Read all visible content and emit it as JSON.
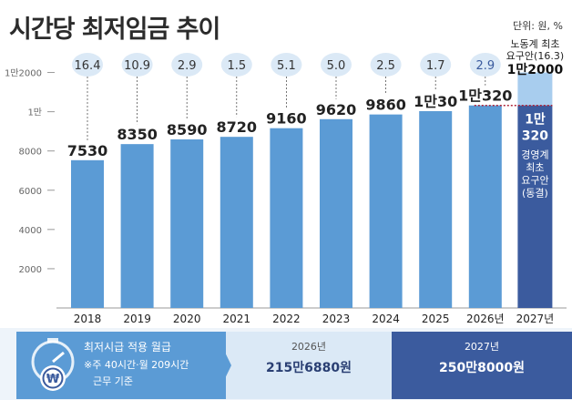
{
  "title": "시간당 최저임금 추이",
  "unit_note": "단위: 원, %",
  "chart_data": {
    "type": "bar",
    "title": "시간당 최저임금 추이",
    "categories": [
      "2018",
      "2019",
      "2020",
      "2021",
      "2022",
      "2023",
      "2024",
      "2025",
      "2026년",
      "2027년"
    ],
    "values": [
      7530,
      8350,
      8590,
      8720,
      9160,
      9620,
      9860,
      10030,
      10320,
      10320
    ],
    "value_labels": [
      "7530",
      "8350",
      "8590",
      "8720",
      "9160",
      "9620",
      "9860",
      "1만30",
      "1만320",
      ""
    ],
    "growth_rates": [
      "16.4",
      "10.9",
      "2.9",
      "1.5",
      "5.1",
      "5.0",
      "2.5",
      "1.7",
      "2.9",
      ""
    ],
    "y_tick_labels": [
      "2000",
      "4000",
      "6000",
      "8000",
      "1만",
      "1만2000"
    ],
    "y_ticks": [
      2000,
      4000,
      6000,
      8000,
      10000,
      12000
    ],
    "ylim": [
      0,
      13000
    ],
    "labor_proposal": {
      "label": "노동계 최초 요구안(16.3)",
      "value": 12000,
      "value_label": "1만2000"
    },
    "employer_proposal": {
      "label": "경영계 최초 요구안 (동결)",
      "value": 10320,
      "value_label": "1만 320"
    },
    "colors": {
      "bar": "#5b9bd5",
      "bar_2026": "#5b9bd5",
      "bar_2027_upper": "#a8cdee",
      "bar_2027_lower": "#3b5b9e",
      "bubble": "#dbe9f6",
      "bubble_text": "#333333",
      "bubble_text_2026": "#3b5b9e",
      "dotted": "#b0263a"
    }
  },
  "monthly": {
    "label": "최저시급 적용 월급",
    "note_line1": "※주 40시간·월 209시간",
    "note_line2": "근무 기준",
    "y2026_label": "2026년",
    "y2026_value": "215만6880원",
    "y2027_label": "2027년",
    "y2027_value": "250만8000원"
  }
}
